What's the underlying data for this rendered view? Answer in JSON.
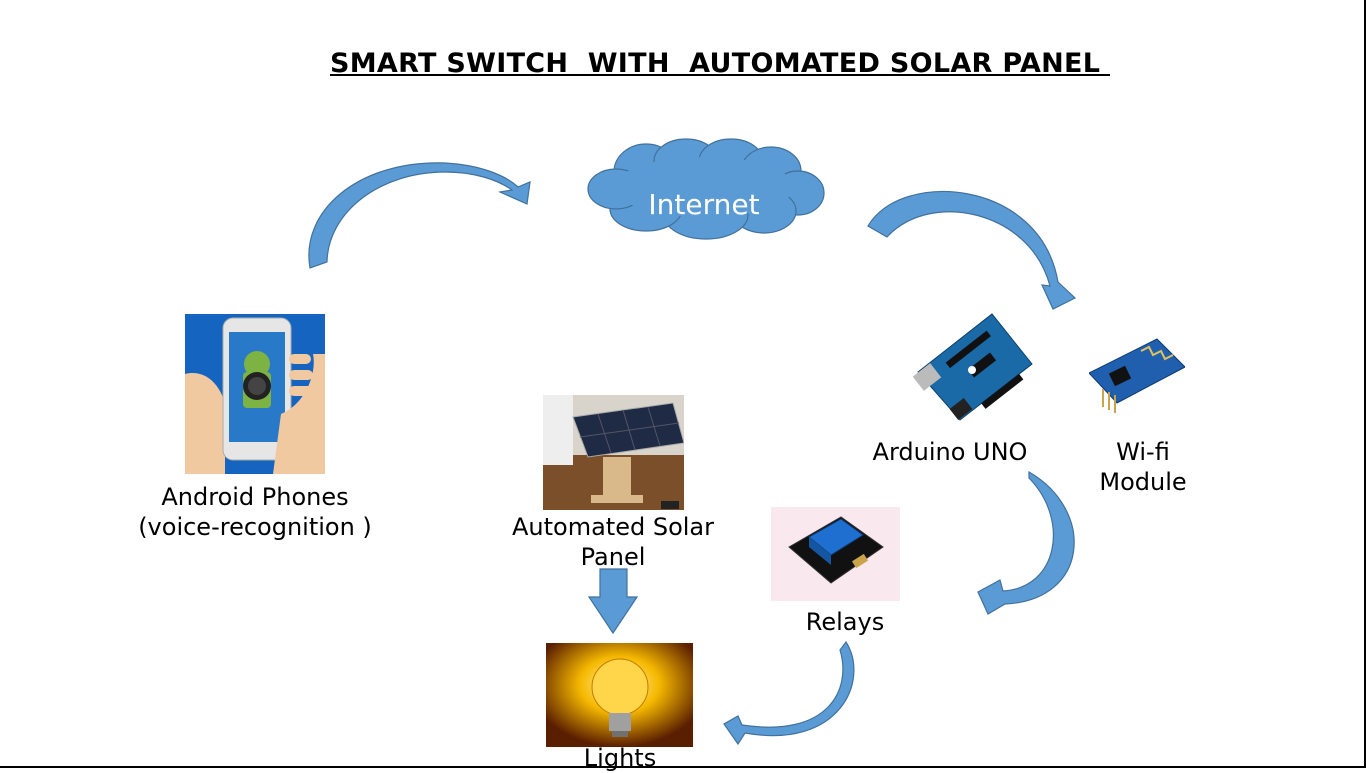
{
  "title": "SMART SWITCH  WITH  AUTOMATED SOLAR PANEL ",
  "nodes": {
    "internet": "Internet",
    "android": "Android Phones\n(voice-recognition )",
    "solar": "Automated Solar\nPanel",
    "lights": "Lights",
    "arduino": "Arduino UNO",
    "wifi": "Wi-fi\nModule",
    "relays": "Relays"
  },
  "colors": {
    "arrow_fill": "#5b9bd5",
    "arrow_stroke": "#41719c",
    "cloud_fill": "#5b9bd5"
  },
  "icons": {
    "android": "android-phone-image",
    "solar": "solar-panel-image",
    "lights": "light-bulb-image",
    "arduino": "arduino-board-image",
    "wifi": "wifi-module-image",
    "relays": "relay-module-image"
  }
}
